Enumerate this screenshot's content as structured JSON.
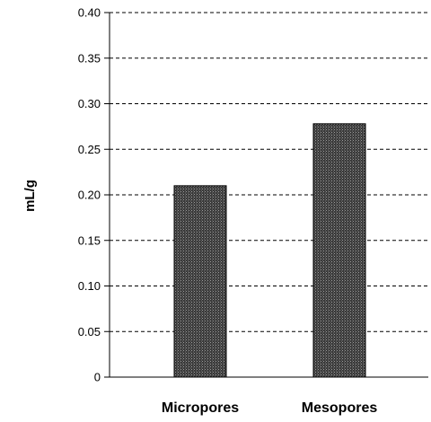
{
  "chart_data": {
    "type": "bar",
    "title": "",
    "xlabel": "",
    "ylabel": "mL/g",
    "ylim": [
      0,
      0.4
    ],
    "yticks": [
      "0",
      "0.05",
      "0.10",
      "0.15",
      "0.20",
      "0.25",
      "0.30",
      "0.35",
      "0.40"
    ],
    "categories": [
      "Micropores",
      "Mesopores"
    ],
    "values": [
      0.21,
      0.278
    ],
    "grid": "horizontal-dashed",
    "legend": "none",
    "colors": {
      "bar": "#3a3a3a",
      "axis": "#000000",
      "grid": "#000000"
    }
  }
}
